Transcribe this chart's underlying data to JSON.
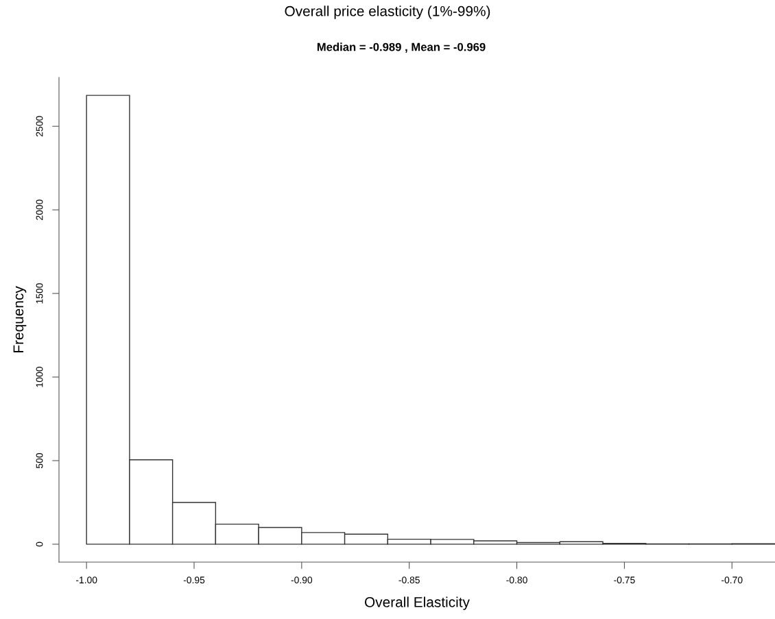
{
  "chart_data": {
    "type": "histogram",
    "title": "Overall price elasticity (1%-99%)",
    "subtitle": "Median = -0.989 , Mean = -0.969",
    "xlabel": "Overall Elasticity",
    "ylabel": "Frequency",
    "bins": [
      -1.0,
      -0.98,
      -0.96,
      -0.94,
      -0.92,
      -0.9,
      -0.88,
      -0.86,
      -0.84,
      -0.82,
      -0.8,
      -0.78,
      -0.76,
      -0.74,
      -0.72,
      -0.7,
      -0.68
    ],
    "values": [
      2685,
      505,
      250,
      120,
      100,
      70,
      60,
      30,
      29,
      20,
      10,
      15,
      5,
      2,
      2,
      3
    ],
    "color": "#ffffff",
    "xlim": [
      -1.0128,
      -0.68
    ],
    "ylim": [
      -107,
      2792
    ],
    "xticks": [
      {
        "value": -1.0,
        "label": "-1.00"
      },
      {
        "value": -0.95,
        "label": "-0.95"
      },
      {
        "value": -0.9,
        "label": "-0.90"
      },
      {
        "value": -0.85,
        "label": "-0.85"
      },
      {
        "value": -0.8,
        "label": "-0.80"
      },
      {
        "value": -0.75,
        "label": "-0.75"
      },
      {
        "value": -0.7,
        "label": "-0.70"
      }
    ],
    "yticks": [
      0,
      500,
      1000,
      1500,
      2000,
      2500
    ],
    "grid": false
  }
}
